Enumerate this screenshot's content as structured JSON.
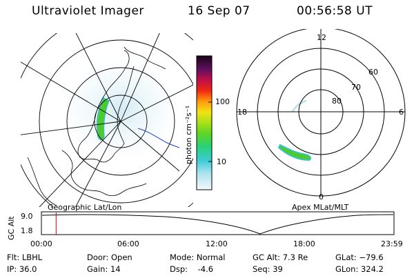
{
  "header": {
    "instrument": "Ultraviolet Imager",
    "date": "16 Sep 07",
    "time": "00:56:58 UT"
  },
  "left_panel": {
    "caption": "Geographic Lat/Lon"
  },
  "right_panel": {
    "caption": "Apex MLat/MLT",
    "mlt_labels": {
      "top": "12",
      "bottom": "0",
      "left": "18",
      "right": "6"
    },
    "lat_labels": [
      "60",
      "70",
      "80"
    ]
  },
  "colorbar": {
    "unit_label": "photon cm⁻²s⁻¹",
    "ticks": [
      "100",
      "10"
    ]
  },
  "altitude_plot": {
    "ylabel": "GC Alt",
    "ytick_top": "9.0",
    "ytick_bottom": "1.8",
    "current_time_fraction": 0.04,
    "time_ticks": [
      "00:00",
      "06:00",
      "12:00",
      "18:00",
      "23:59"
    ]
  },
  "info": {
    "filter": "Flt: LBHL",
    "ip": "IP: 36.0",
    "door": "Door: Open",
    "gain": "Gain: 14",
    "mode": "Mode: Normal",
    "dsp": "Dsp:    -4.6",
    "gc_alt": "GC Alt: 7.3 Re",
    "seq": "Seq: 39",
    "glat": "GLat: −79.6",
    "glon": "GLon: 324.2"
  },
  "colors": {
    "marker": "#dd0000",
    "lines": "#000000",
    "coast": "#000000",
    "aurora_green": "#4ccc2a"
  }
}
